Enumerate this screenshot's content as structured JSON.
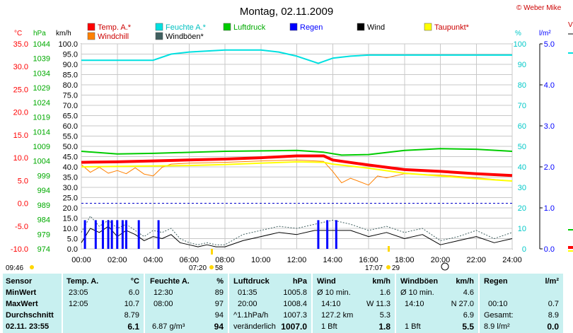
{
  "title": "Montag, 02.11.2009",
  "copyright": "© Weber Mike",
  "legend": [
    {
      "label": "Temp. A.*",
      "color": "#ff0000"
    },
    {
      "label": "Feuchte A.*",
      "color": "#00e0e0"
    },
    {
      "label": "Luftdruck",
      "color": "#00cc00"
    },
    {
      "label": "Regen",
      "color": "#0000ff"
    },
    {
      "label": "Wind",
      "color": "#000000"
    },
    {
      "label": "Taupunkt*",
      "color": "#ffff00"
    },
    {
      "label": "Windchill",
      "color": "#ff8000"
    },
    {
      "label": "Windböen*",
      "color": "#406060"
    }
  ],
  "axes": {
    "temp_unit": "°C",
    "hpa_unit": "hPa",
    "kmh_unit": "km/h",
    "pct_unit": "%",
    "rain_unit": "l/m²",
    "temp_ticks": [
      "35.0",
      "30.0",
      "25.0",
      "20.0",
      "15.0",
      "10.0",
      "5.0",
      "0.0",
      "-5.0",
      "-10.0"
    ],
    "hpa_ticks": [
      "1044",
      "1039",
      "1034",
      "1029",
      "1024",
      "1019",
      "1014",
      "1009",
      "1004",
      "999",
      "994",
      "989",
      "984",
      "979",
      "974"
    ],
    "kmh_ticks": [
      "100.0",
      "95.0",
      "90.0",
      "85.0",
      "80.0",
      "75.0",
      "70.0",
      "65.0",
      "60.0",
      "55.0",
      "50.0",
      "45.0",
      "40.0",
      "35.0",
      "30.0",
      "25.0",
      "20.0",
      "15.0",
      "10.0",
      "5.0",
      "0.0"
    ],
    "pct_ticks": [
      "100",
      "90",
      "80",
      "70",
      "60",
      "50",
      "40",
      "30",
      "20",
      "10",
      "0"
    ],
    "rain_ticks": [
      "5.0",
      "4.0",
      "3.0",
      "2.0",
      "1.0",
      "0.0"
    ],
    "time_ticks": [
      "00:00",
      "02:00",
      "04:00",
      "06:00",
      "08:00",
      "10:00",
      "12:00",
      "14:00",
      "16:00",
      "18:00",
      "20:00",
      "22:00",
      "24:00"
    ],
    "sun_labels": {
      "left": "09:46",
      "rise": "07:20",
      "rise_sub": "58",
      "set": "17:07",
      "set_sub": "29"
    }
  },
  "chart_data": {
    "type": "line",
    "title": "Montag, 02.11.2009",
    "x_unit": "hour",
    "series": [
      {
        "name": "Temp. A.*",
        "unit": "°C",
        "color": "#ff0000",
        "x": [
          0,
          2,
          4,
          6,
          8,
          10,
          12,
          13.5,
          14,
          16,
          18,
          20,
          22,
          24
        ],
        "values": [
          9.0,
          9.1,
          9.3,
          9.5,
          9.7,
          10.0,
          10.4,
          10.4,
          9.5,
          8.4,
          7.4,
          7.0,
          6.5,
          6.1
        ]
      },
      {
        "name": "Feuchte A.*",
        "unit": "%",
        "color": "#00e0e0",
        "x": [
          0,
          4,
          5,
          6,
          8,
          10,
          11,
          12,
          13.2,
          14,
          15,
          16,
          24
        ],
        "values": [
          92,
          92,
          95,
          96,
          97,
          97,
          96,
          94,
          90.5,
          93,
          94,
          94.5,
          94.5
        ]
      },
      {
        "name": "Luftdruck",
        "unit": "hPa",
        "color": "#00cc00",
        "x": [
          0,
          2,
          4,
          8,
          12,
          13.5,
          14.5,
          16,
          18,
          20,
          22,
          24
        ],
        "values": [
          1007.3,
          1006.4,
          1006.6,
          1007.3,
          1007.6,
          1007.0,
          1006.0,
          1006.2,
          1007.6,
          1008.2,
          1008.0,
          1007.3
        ]
      },
      {
        "name": "Taupunkt*",
        "unit": "°C",
        "color": "#ffff00",
        "x": [
          0,
          2,
          4,
          6,
          8,
          10,
          12,
          13.5,
          14,
          16,
          18,
          20,
          22,
          24
        ],
        "values": [
          8.0,
          8.1,
          8.2,
          8.3,
          8.5,
          8.8,
          9.1,
          9.0,
          8.6,
          7.7,
          6.6,
          6.0,
          5.4,
          4.9
        ]
      },
      {
        "name": "Windchill",
        "unit": "°C",
        "color": "#ff8000",
        "x": [
          0,
          0.5,
          1,
          1.5,
          2,
          2.5,
          3,
          3.5,
          4,
          4.5,
          5,
          6,
          8,
          10,
          12,
          13.5,
          14,
          14.5,
          15,
          16,
          16.5,
          17,
          18,
          20,
          22,
          24
        ],
        "values": [
          8.5,
          6.8,
          7.9,
          6.6,
          7.2,
          6.5,
          7.8,
          6.4,
          6.0,
          7.9,
          8.6,
          8.8,
          9.0,
          9.3,
          9.5,
          9.2,
          7.0,
          4.5,
          5.5,
          4.0,
          6.0,
          5.6,
          6.5,
          6.2,
          5.6,
          4.9
        ]
      },
      {
        "name": "Wind",
        "unit": "km/h",
        "color": "#000000",
        "x": [
          0,
          0.5,
          1,
          1.5,
          2,
          2.5,
          3,
          3.5,
          4,
          4.5,
          5,
          5.5,
          6,
          6.5,
          7,
          7.5,
          8,
          9,
          10,
          11,
          12,
          13,
          14,
          15,
          16,
          17,
          18,
          19,
          20,
          21,
          22,
          23,
          24
        ],
        "values": [
          3,
          10,
          8,
          11,
          6,
          9,
          7,
          4,
          6,
          5,
          7,
          3,
          2,
          1,
          2,
          1,
          1,
          4,
          6,
          8,
          7,
          9,
          9,
          9,
          6,
          8,
          5,
          7,
          2,
          4,
          6,
          3,
          5
        ]
      },
      {
        "name": "Windböen*",
        "unit": "km/h",
        "color": "#406060",
        "x": [
          0,
          0.5,
          1,
          1.5,
          2,
          2.5,
          3,
          3.5,
          4,
          4.5,
          5,
          5.5,
          6,
          6.5,
          7,
          7.5,
          8,
          9,
          10,
          11,
          12,
          13,
          14,
          15,
          16,
          17,
          18,
          19,
          20,
          21,
          22,
          23,
          24
        ],
        "values": [
          8,
          16,
          11,
          14,
          10,
          12,
          9,
          6,
          9,
          8,
          10,
          5,
          3,
          2,
          3,
          2,
          2,
          7,
          9,
          11,
          10,
          12,
          14,
          12,
          9,
          11,
          8,
          10,
          4,
          6,
          9,
          5,
          8
        ]
      },
      {
        "name": "Regen",
        "unit": "l/m²",
        "color": "#0000ff",
        "type": "bar",
        "x": [
          0.2,
          0.8,
          1.2,
          1.5,
          1.7,
          2.0,
          2.3,
          2.5,
          3.2,
          4.3,
          13.2,
          13.7,
          14.2
        ],
        "values": [
          0.7,
          0.7,
          0.7,
          0.7,
          0.7,
          0.7,
          0.7,
          0.7,
          0.7,
          0.7,
          0.7,
          0.7,
          0.7
        ]
      }
    ],
    "ranges": {
      "temp": [
        -10,
        35
      ],
      "hpa": [
        974,
        1044
      ],
      "kmh": [
        0,
        100
      ],
      "pct": [
        0,
        100
      ],
      "rain": [
        0,
        5
      ],
      "x": [
        0,
        24
      ]
    },
    "grid": true
  },
  "stats": {
    "sensor": {
      "header": "Sensor",
      "rows": [
        "MinWert",
        "MaxWert",
        "Durchschnitt",
        "02.11. 23:55"
      ]
    },
    "temp": {
      "header": "Temp. A.",
      "unit": "°C",
      "min_time": "23:05",
      "min": "6.0",
      "max_time": "12:05",
      "max": "10.7",
      "avg": "8.79",
      "cur": "6.1"
    },
    "hum": {
      "header": "Feuchte A.",
      "unit": "%",
      "min_time": "12:30",
      "min": "89",
      "max_time": "08:00",
      "max": "97",
      "avg": "94",
      "abs": "6.87 g/m³",
      "cur": "94"
    },
    "press": {
      "header": "Luftdruck",
      "unit": "hPa",
      "min_time": "01:35",
      "min": "1005.8",
      "max_time": "20:00",
      "max": "1008.4",
      "avg_label": "^1.1hPa/h",
      "avg": "1007.3",
      "trend": "veränderlich",
      "cur": "1007.0"
    },
    "wind": {
      "header": "Wind",
      "unit": "km/h",
      "r1l": "Ø 10 min.",
      "r1v": "1.6",
      "r2l": "14:10",
      "r2m": "W 11.3",
      "r3l": "127.2 km",
      "r3v": "5.3",
      "r4l": "1 Bft",
      "cur": "1.8"
    },
    "gust": {
      "header": "Windböen",
      "unit": "km/h",
      "r1l": "Ø 10 min.",
      "r1v": "4.6",
      "r2l": "14:10",
      "r2m": "N 27.0",
      "avg": "6.9",
      "r4l": "1 Bft",
      "cur": "5.5"
    },
    "rain": {
      "header": "Regen",
      "unit": "l/m²",
      "r2l": "00:10",
      "r2v": "0.7",
      "r3l": "Gesamt:",
      "r3v": "8.9",
      "r4l": "8.9 l/m²",
      "cur": "0.0"
    }
  },
  "right_edge": {
    "label": "V"
  }
}
